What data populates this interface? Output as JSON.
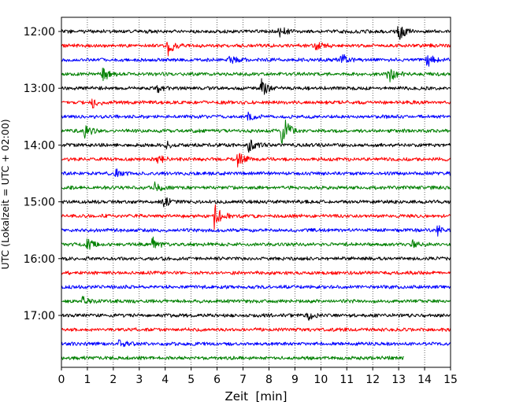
{
  "chart_data": {
    "type": "line",
    "subtype": "helicorder",
    "title": "",
    "xlabel": "Zeit  [min]",
    "ylabel": "UTC (Lokalzeit = UTC + 02:00)",
    "xlim": [
      0,
      15
    ],
    "x_ticks": [
      0,
      1,
      2,
      3,
      4,
      5,
      6,
      7,
      8,
      9,
      10,
      11,
      12,
      13,
      14,
      15
    ],
    "x_grid": true,
    "grid_style": "dotted",
    "trace_interval_min": 15,
    "trace_colors": [
      "#000000",
      "#ff0000",
      "#0000ff",
      "#008000"
    ],
    "y_ticks": [
      "12:00",
      "13:00",
      "14:00",
      "15:00",
      "16:00",
      "17:00"
    ],
    "rows": [
      {
        "start": "12:00",
        "color": "#000000"
      },
      {
        "start": "12:15",
        "color": "#ff0000"
      },
      {
        "start": "12:30",
        "color": "#0000ff"
      },
      {
        "start": "12:45",
        "color": "#008000"
      },
      {
        "start": "13:00",
        "color": "#000000"
      },
      {
        "start": "13:15",
        "color": "#ff0000"
      },
      {
        "start": "13:30",
        "color": "#0000ff"
      },
      {
        "start": "13:45",
        "color": "#008000"
      },
      {
        "start": "14:00",
        "color": "#000000"
      },
      {
        "start": "14:15",
        "color": "#ff0000"
      },
      {
        "start": "14:30",
        "color": "#0000ff"
      },
      {
        "start": "14:45",
        "color": "#008000"
      },
      {
        "start": "15:00",
        "color": "#000000"
      },
      {
        "start": "15:15",
        "color": "#ff0000"
      },
      {
        "start": "15:30",
        "color": "#0000ff"
      },
      {
        "start": "15:45",
        "color": "#008000"
      },
      {
        "start": "16:00",
        "color": "#000000"
      },
      {
        "start": "16:15",
        "color": "#ff0000"
      },
      {
        "start": "16:30",
        "color": "#0000ff"
      },
      {
        "start": "16:45",
        "color": "#008000"
      },
      {
        "start": "17:00",
        "color": "#000000"
      },
      {
        "start": "17:15",
        "color": "#ff0000"
      },
      {
        "start": "17:30",
        "color": "#0000ff"
      },
      {
        "start": "17:45",
        "color": "#008000",
        "end_minute": 13.2
      }
    ],
    "events": [
      {
        "row": 0,
        "minute": 13.0,
        "amplitude": 1.0
      },
      {
        "row": 0,
        "minute": 8.4,
        "amplitude": 0.6
      },
      {
        "row": 1,
        "minute": 4.1,
        "amplitude": 1.0
      },
      {
        "row": 1,
        "minute": 9.8,
        "amplitude": 0.6
      },
      {
        "row": 2,
        "minute": 10.8,
        "amplitude": 0.8
      },
      {
        "row": 2,
        "minute": 14.1,
        "amplitude": 0.7
      },
      {
        "row": 2,
        "minute": 6.5,
        "amplitude": 0.4
      },
      {
        "row": 3,
        "minute": 1.6,
        "amplitude": 0.8
      },
      {
        "row": 3,
        "minute": 12.6,
        "amplitude": 1.0
      },
      {
        "row": 4,
        "minute": 7.7,
        "amplitude": 1.0
      },
      {
        "row": 4,
        "minute": 3.7,
        "amplitude": 0.4
      },
      {
        "row": 5,
        "minute": 1.2,
        "amplitude": 0.5
      },
      {
        "row": 6,
        "minute": 7.2,
        "amplitude": 0.4
      },
      {
        "row": 7,
        "minute": 8.5,
        "amplitude": 2.2
      },
      {
        "row": 7,
        "minute": 0.9,
        "amplitude": 0.8
      },
      {
        "row": 8,
        "minute": 7.2,
        "amplitude": 0.7
      },
      {
        "row": 8,
        "minute": 4.0,
        "amplitude": 0.4
      },
      {
        "row": 9,
        "minute": 6.8,
        "amplitude": 0.8
      },
      {
        "row": 9,
        "minute": 3.7,
        "amplitude": 0.5
      },
      {
        "row": 10,
        "minute": 2.1,
        "amplitude": 0.4
      },
      {
        "row": 11,
        "minute": 3.6,
        "amplitude": 0.5
      },
      {
        "row": 12,
        "minute": 3.9,
        "amplitude": 0.7
      },
      {
        "row": 13,
        "minute": 5.9,
        "amplitude": 1.6
      },
      {
        "row": 14,
        "minute": 14.5,
        "amplitude": 0.5
      },
      {
        "row": 15,
        "minute": 1.0,
        "amplitude": 0.8
      },
      {
        "row": 15,
        "minute": 3.5,
        "amplitude": 0.8
      },
      {
        "row": 15,
        "minute": 13.5,
        "amplitude": 0.6
      },
      {
        "row": 19,
        "minute": 0.8,
        "amplitude": 0.5
      },
      {
        "row": 20,
        "minute": 9.5,
        "amplitude": 0.5
      },
      {
        "row": 22,
        "minute": 2.2,
        "amplitude": 0.4
      }
    ]
  }
}
